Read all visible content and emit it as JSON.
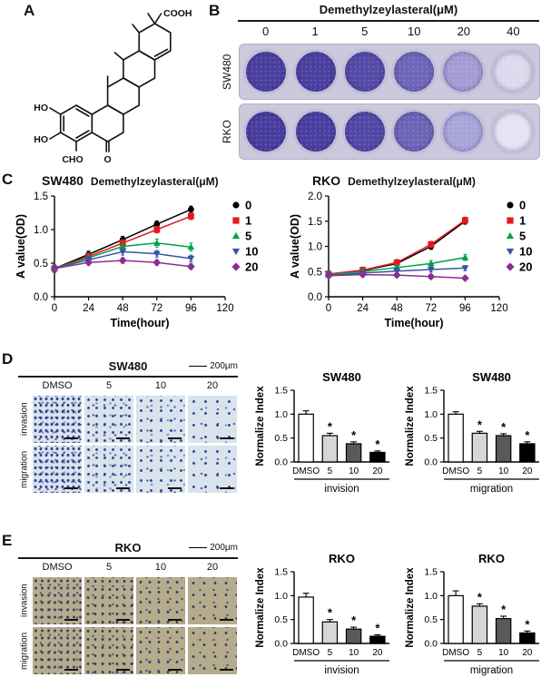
{
  "figure": {
    "panels": {
      "A": {
        "label": "A",
        "labels": {
          "cooh": "COOH",
          "ho_top": "HO",
          "ho_bottom": "HO",
          "cho": "CHO",
          "ketone_o": "O"
        }
      },
      "B": {
        "label": "B",
        "title": "Demethylzeylasteral(μM)",
        "concentrations": [
          "0",
          "1",
          "5",
          "10",
          "20",
          "40"
        ],
        "rows": [
          {
            "name": "SW480",
            "well_colors": [
              "#4a3f9f",
              "#4b40a0",
              "#544aa7",
              "#6e66b7",
              "#a39dd3",
              "#dddaee"
            ]
          },
          {
            "name": "RKO",
            "well_colors": [
              "#483d9e",
              "#4a3fa0",
              "#5148a5",
              "#6c64b5",
              "#aaa5d8",
              "#e5e3f3"
            ]
          }
        ],
        "plate_bg": "#ccc9dd"
      },
      "C": {
        "label": "C"
      },
      "D": {
        "label": "D",
        "title": "SW480",
        "scale_label": "200μm",
        "col_labels": [
          "DMSO",
          "5",
          "10",
          "20"
        ],
        "row_labels": [
          "invasion",
          "migration"
        ]
      },
      "E": {
        "label": "E",
        "title": "RKO",
        "scale_label": "200μm",
        "col_labels": [
          "DMSO",
          "5",
          "10",
          "20"
        ],
        "row_labels": [
          "invasion",
          "migration"
        ]
      }
    }
  },
  "chart_data": [
    {
      "id": "sw480_growth",
      "type": "line",
      "title": "SW480",
      "subtitle": "Demethylzeylasteral(μM)",
      "xlabel": "Time(hour)",
      "ylabel": "A value(OD)",
      "x": [
        0,
        24,
        48,
        72,
        96
      ],
      "xlim": [
        0,
        120
      ],
      "xticks": [
        0,
        24,
        48,
        72,
        96,
        120
      ],
      "ylim": [
        0,
        1.5
      ],
      "yticks": [
        0,
        0.5,
        1,
        1.5
      ],
      "legend_position": "right",
      "series": [
        {
          "name": "0",
          "color": "#000000",
          "marker": "circle",
          "err": 0.05,
          "values": [
            0.42,
            0.63,
            0.85,
            1.08,
            1.3
          ]
        },
        {
          "name": "1",
          "color": "#e4191f",
          "marker": "square",
          "err": 0.05,
          "values": [
            0.42,
            0.6,
            0.8,
            1.0,
            1.2
          ]
        },
        {
          "name": "5",
          "color": "#00a14b",
          "marker": "triangle",
          "err": 0.06,
          "values": [
            0.42,
            0.58,
            0.75,
            0.8,
            0.74
          ]
        },
        {
          "name": "10",
          "color": "#3954a4",
          "marker": "triangle-down",
          "err": 0.05,
          "values": [
            0.42,
            0.55,
            0.67,
            0.64,
            0.57
          ]
        },
        {
          "name": "20",
          "color": "#8c2d91",
          "marker": "diamond",
          "err": 0.04,
          "values": [
            0.42,
            0.51,
            0.54,
            0.51,
            0.45
          ]
        }
      ]
    },
    {
      "id": "rko_growth",
      "type": "line",
      "title": "RKO",
      "subtitle": "Demethylzeylasteral(μM)",
      "xlabel": "Time(hour)",
      "ylabel": "A value(OD)",
      "x": [
        0,
        24,
        48,
        72,
        96
      ],
      "xlim": [
        0,
        120
      ],
      "xticks": [
        0,
        24,
        48,
        72,
        96,
        120
      ],
      "ylim": [
        0,
        2
      ],
      "yticks": [
        0,
        0.5,
        1,
        1.5,
        2
      ],
      "legend_position": "right",
      "series": [
        {
          "name": "0",
          "color": "#000000",
          "marker": "circle",
          "err": 0.06,
          "values": [
            0.45,
            0.52,
            0.66,
            1.0,
            1.5
          ]
        },
        {
          "name": "1",
          "color": "#e4191f",
          "marker": "square",
          "err": 0.06,
          "values": [
            0.45,
            0.53,
            0.68,
            1.04,
            1.52
          ]
        },
        {
          "name": "5",
          "color": "#00a14b",
          "marker": "triangle",
          "err": 0.06,
          "values": [
            0.44,
            0.5,
            0.58,
            0.66,
            0.78
          ]
        },
        {
          "name": "10",
          "color": "#3954a4",
          "marker": "triangle-down",
          "err": 0.05,
          "values": [
            0.42,
            0.47,
            0.51,
            0.54,
            0.57
          ]
        },
        {
          "name": "20",
          "color": "#8c2d91",
          "marker": "diamond",
          "err": 0.04,
          "values": [
            0.42,
            0.44,
            0.43,
            0.4,
            0.37
          ]
        }
      ]
    },
    {
      "id": "sw480_invasion",
      "type": "bar",
      "title": "SW480",
      "ylabel": "Normalize Index",
      "group": "invision",
      "categories": [
        "DMSO",
        "5",
        "10",
        "20"
      ],
      "values": [
        1.0,
        0.55,
        0.38,
        0.2
      ],
      "errors": [
        0.07,
        0.05,
        0.04,
        0.03
      ],
      "sig": [
        "",
        "*",
        "*",
        "*"
      ],
      "colors": [
        "#ffffff",
        "#d6d6d6",
        "#595959",
        "#000000"
      ],
      "ylim": [
        0,
        1.5
      ],
      "yticks": [
        0,
        0.5,
        1,
        1.5
      ]
    },
    {
      "id": "sw480_migration",
      "type": "bar",
      "title": "SW480",
      "ylabel": "Normalize Index",
      "group": "migration",
      "categories": [
        "DMSO",
        "5",
        "10",
        "20"
      ],
      "values": [
        1.0,
        0.6,
        0.55,
        0.38
      ],
      "errors": [
        0.05,
        0.04,
        0.04,
        0.04
      ],
      "sig": [
        "",
        "*",
        "*",
        "*"
      ],
      "colors": [
        "#ffffff",
        "#d6d6d6",
        "#595959",
        "#000000"
      ],
      "ylim": [
        0,
        1.5
      ],
      "yticks": [
        0,
        0.5,
        1,
        1.5
      ]
    },
    {
      "id": "rko_invasion",
      "type": "bar",
      "title": "RKO",
      "ylabel": "Normalize Index",
      "group": "invision",
      "categories": [
        "DMSO",
        "5",
        "10",
        "20"
      ],
      "values": [
        0.97,
        0.45,
        0.3,
        0.15
      ],
      "errors": [
        0.08,
        0.05,
        0.04,
        0.03
      ],
      "sig": [
        "",
        "*",
        "*",
        "*"
      ],
      "colors": [
        "#ffffff",
        "#d6d6d6",
        "#595959",
        "#000000"
      ],
      "ylim": [
        0,
        1.5
      ],
      "yticks": [
        0,
        0.5,
        1,
        1.5
      ]
    },
    {
      "id": "rko_migration",
      "type": "bar",
      "title": "RKO",
      "ylabel": "Normalize Index",
      "group": "migration",
      "categories": [
        "DMSO",
        "5",
        "10",
        "20"
      ],
      "values": [
        1.0,
        0.78,
        0.52,
        0.22
      ],
      "errors": [
        0.1,
        0.05,
        0.05,
        0.04
      ],
      "sig": [
        "",
        "*",
        "*",
        "*"
      ],
      "colors": [
        "#ffffff",
        "#d6d6d6",
        "#595959",
        "#000000"
      ],
      "ylim": [
        0,
        1.5
      ],
      "yticks": [
        0,
        0.5,
        1,
        1.5
      ]
    }
  ]
}
